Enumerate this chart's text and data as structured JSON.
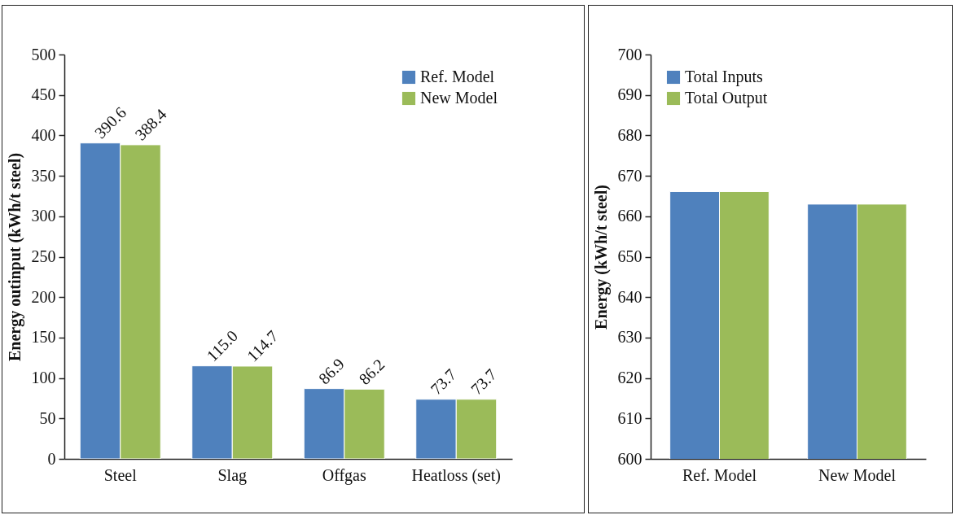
{
  "chart_data": [
    {
      "type": "bar",
      "categories": [
        "Steel",
        "Slag",
        "Offgas",
        "Heatloss (set)"
      ],
      "ylabel": "Energy outinput (kWh/t steel)",
      "ylim": [
        0,
        500
      ],
      "yticks": [
        0,
        50,
        100,
        150,
        200,
        250,
        300,
        350,
        400,
        450,
        500
      ],
      "legend": "top right",
      "grid": false,
      "series": [
        {
          "name": "Ref. Model",
          "color": "#4f81bd",
          "values": [
            390.6,
            115.0,
            86.9,
            73.7
          ],
          "value_labels": [
            "390.6",
            "115.0",
            "86.9",
            "73.7"
          ]
        },
        {
          "name": "New Model",
          "color": "#9bbb59",
          "values": [
            388.4,
            114.7,
            86.2,
            73.7
          ],
          "value_labels": [
            "388.4",
            "114.7",
            "86.2",
            "73.7"
          ]
        }
      ]
    },
    {
      "type": "bar",
      "categories": [
        "Ref. Model",
        "New Model"
      ],
      "ylabel": "Energy  (kWh/t steel)",
      "ylim": [
        600,
        700
      ],
      "yticks": [
        600,
        610,
        620,
        630,
        640,
        650,
        660,
        670,
        680,
        690,
        700
      ],
      "legend": "top left",
      "grid": false,
      "series": [
        {
          "name": "Total Inputs",
          "color": "#4f81bd",
          "values": [
            666.1,
            663.0
          ]
        },
        {
          "name": "Total Output",
          "color": "#9bbb59",
          "values": [
            666.1,
            663.0
          ]
        }
      ]
    }
  ]
}
